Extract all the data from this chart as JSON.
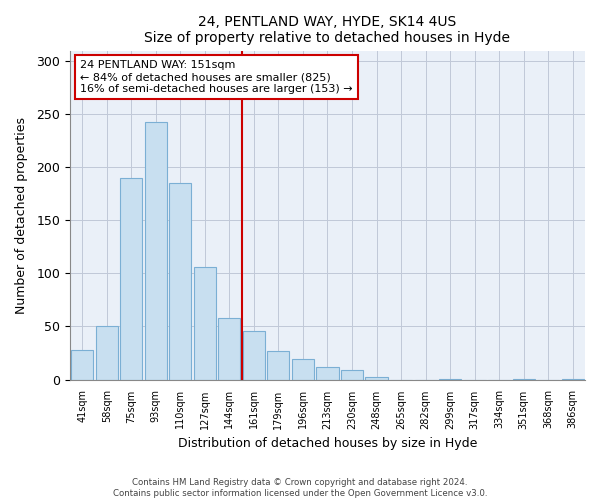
{
  "title": "24, PENTLAND WAY, HYDE, SK14 4US",
  "subtitle": "Size of property relative to detached houses in Hyde",
  "xlabel": "Distribution of detached houses by size in Hyde",
  "ylabel": "Number of detached properties",
  "bar_labels": [
    "41sqm",
    "58sqm",
    "75sqm",
    "93sqm",
    "110sqm",
    "127sqm",
    "144sqm",
    "161sqm",
    "179sqm",
    "196sqm",
    "213sqm",
    "230sqm",
    "248sqm",
    "265sqm",
    "282sqm",
    "299sqm",
    "317sqm",
    "334sqm",
    "351sqm",
    "368sqm",
    "386sqm"
  ],
  "bar_values": [
    28,
    50,
    190,
    243,
    185,
    106,
    58,
    46,
    27,
    19,
    12,
    9,
    2,
    0,
    0,
    1,
    0,
    0,
    1,
    0,
    1
  ],
  "bar_color": "#c8dff0",
  "bar_edge_color": "#7bafd4",
  "vline_color": "#cc0000",
  "vline_pos": 6.5,
  "ylim": [
    0,
    310
  ],
  "yticks": [
    0,
    50,
    100,
    150,
    200,
    250,
    300
  ],
  "annotation_title": "24 PENTLAND WAY: 151sqm",
  "annotation_line1": "← 84% of detached houses are smaller (825)",
  "annotation_line2": "16% of semi-detached houses are larger (153) →",
  "footer_line1": "Contains HM Land Registry data © Crown copyright and database right 2024.",
  "footer_line2": "Contains public sector information licensed under the Open Government Licence v3.0.",
  "plot_bg_color": "#eaf0f8",
  "grid_color": "#c0c8d8"
}
